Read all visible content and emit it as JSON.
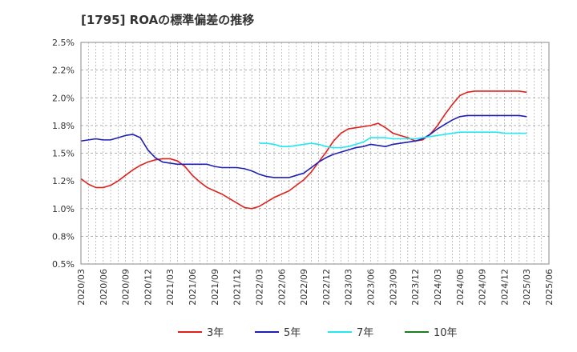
{
  "chart_data": {
    "type": "line",
    "title": "[1795]  ROAの標準偏差の推移",
    "xlabel": "",
    "ylabel": "",
    "ylim": [
      0.5,
      2.5
    ],
    "yticks": [
      0.5,
      0.75,
      1.0,
      1.25,
      1.5,
      1.75,
      2.0,
      2.25,
      2.5
    ],
    "ytick_labels": [
      "0.5%",
      "0.8%",
      "1.0%",
      "1.2%",
      "1.5%",
      "1.8%",
      "2.0%",
      "2.2%",
      "2.5%"
    ],
    "x_ticks": [
      "2020/03",
      "2020/06",
      "2020/09",
      "2020/12",
      "2021/03",
      "2021/06",
      "2021/09",
      "2021/12",
      "2022/03",
      "2022/06",
      "2022/09",
      "2022/12",
      "2023/03",
      "2023/06",
      "2023/09",
      "2023/12",
      "2024/03",
      "2024/06",
      "2024/09",
      "2024/12",
      "2025/03",
      "2025/06"
    ],
    "grid": true,
    "legend_position": "bottom",
    "series": [
      {
        "name": "3年",
        "color": "#e0201b",
        "x": [
          "2020/03",
          "2020/04",
          "2020/05",
          "2020/06",
          "2020/07",
          "2020/08",
          "2020/09",
          "2020/10",
          "2020/11",
          "2020/12",
          "2021/01",
          "2021/02",
          "2021/03",
          "2021/04",
          "2021/05",
          "2021/06",
          "2021/07",
          "2021/08",
          "2021/09",
          "2021/10",
          "2021/11",
          "2021/12",
          "2022/01",
          "2022/02",
          "2022/03",
          "2022/04",
          "2022/05",
          "2022/06",
          "2022/07",
          "2022/08",
          "2022/09",
          "2022/10",
          "2022/11",
          "2022/12",
          "2023/01",
          "2023/02",
          "2023/03",
          "2023/04",
          "2023/05",
          "2023/06",
          "2023/07",
          "2023/08",
          "2023/09",
          "2023/10",
          "2023/11",
          "2023/12",
          "2024/01",
          "2024/02",
          "2024/03",
          "2024/04",
          "2024/05",
          "2024/06",
          "2024/07",
          "2024/08",
          "2024/09",
          "2024/10",
          "2024/11",
          "2024/12",
          "2025/01",
          "2025/02",
          "2025/03"
        ],
        "values": [
          1.27,
          1.22,
          1.19,
          1.19,
          1.21,
          1.25,
          1.3,
          1.35,
          1.39,
          1.42,
          1.44,
          1.45,
          1.45,
          1.43,
          1.38,
          1.3,
          1.24,
          1.19,
          1.16,
          1.13,
          1.09,
          1.05,
          1.01,
          1.0,
          1.02,
          1.06,
          1.1,
          1.13,
          1.16,
          1.21,
          1.26,
          1.33,
          1.42,
          1.51,
          1.61,
          1.68,
          1.72,
          1.73,
          1.74,
          1.75,
          1.77,
          1.73,
          1.68,
          1.66,
          1.64,
          1.61,
          1.62,
          1.67,
          1.75,
          1.85,
          1.94,
          2.02,
          2.05,
          2.06,
          2.06,
          2.06,
          2.06,
          2.06,
          2.06,
          2.06,
          2.05
        ]
      },
      {
        "name": "5年",
        "color": "#1f1fb5",
        "x": [
          "2020/03",
          "2020/04",
          "2020/05",
          "2020/06",
          "2020/07",
          "2020/08",
          "2020/09",
          "2020/10",
          "2020/11",
          "2020/12",
          "2021/01",
          "2021/02",
          "2021/03",
          "2021/04",
          "2021/05",
          "2021/06",
          "2021/07",
          "2021/08",
          "2021/09",
          "2021/10",
          "2021/11",
          "2021/12",
          "2022/01",
          "2022/02",
          "2022/03",
          "2022/04",
          "2022/05",
          "2022/06",
          "2022/07",
          "2022/08",
          "2022/09",
          "2022/10",
          "2022/11",
          "2022/12",
          "2023/01",
          "2023/02",
          "2023/03",
          "2023/04",
          "2023/05",
          "2023/06",
          "2023/07",
          "2023/08",
          "2023/09",
          "2023/10",
          "2023/11",
          "2023/12",
          "2024/01",
          "2024/02",
          "2024/03",
          "2024/04",
          "2024/05",
          "2024/06",
          "2024/07",
          "2024/08",
          "2024/09",
          "2024/10",
          "2024/11",
          "2024/12",
          "2025/01",
          "2025/02",
          "2025/03"
        ],
        "values": [
          1.61,
          1.62,
          1.63,
          1.62,
          1.62,
          1.64,
          1.66,
          1.67,
          1.64,
          1.53,
          1.46,
          1.42,
          1.41,
          1.4,
          1.4,
          1.4,
          1.4,
          1.4,
          1.38,
          1.37,
          1.37,
          1.37,
          1.36,
          1.34,
          1.31,
          1.29,
          1.28,
          1.28,
          1.28,
          1.3,
          1.32,
          1.37,
          1.42,
          1.46,
          1.49,
          1.51,
          1.53,
          1.55,
          1.56,
          1.58,
          1.57,
          1.56,
          1.58,
          1.59,
          1.6,
          1.61,
          1.63,
          1.67,
          1.72,
          1.76,
          1.8,
          1.83,
          1.84,
          1.84,
          1.84,
          1.84,
          1.84,
          1.84,
          1.84,
          1.84,
          1.83
        ]
      },
      {
        "name": "7年",
        "color": "#22e8f0",
        "x": [
          "2022/03",
          "2022/04",
          "2022/05",
          "2022/06",
          "2022/07",
          "2022/08",
          "2022/09",
          "2022/10",
          "2022/11",
          "2022/12",
          "2023/01",
          "2023/02",
          "2023/03",
          "2023/04",
          "2023/05",
          "2023/06",
          "2023/07",
          "2023/08",
          "2023/09",
          "2023/10",
          "2023/11",
          "2023/12",
          "2024/01",
          "2024/02",
          "2024/03",
          "2024/04",
          "2024/05",
          "2024/06",
          "2024/07",
          "2024/08",
          "2024/09",
          "2024/10",
          "2024/11",
          "2024/12",
          "2025/01",
          "2025/02",
          "2025/03"
        ],
        "values": [
          1.59,
          1.59,
          1.58,
          1.56,
          1.56,
          1.57,
          1.58,
          1.59,
          1.58,
          1.56,
          1.55,
          1.55,
          1.56,
          1.58,
          1.6,
          1.64,
          1.64,
          1.64,
          1.63,
          1.63,
          1.63,
          1.63,
          1.64,
          1.65,
          1.66,
          1.67,
          1.68,
          1.69,
          1.69,
          1.69,
          1.69,
          1.69,
          1.69,
          1.68,
          1.68,
          1.68,
          1.68
        ]
      },
      {
        "name": "10年",
        "color": "#1e7d1e",
        "x": [],
        "values": []
      }
    ]
  }
}
